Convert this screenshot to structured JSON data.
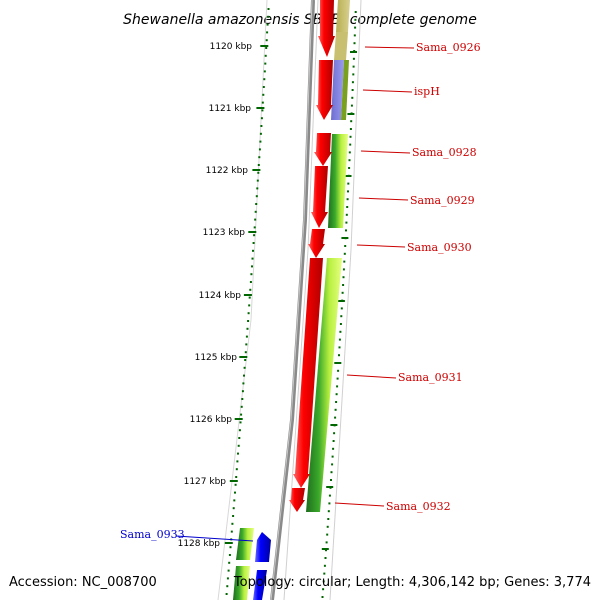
{
  "title": "Shewanella amazonensis SB2B, complete genome",
  "footer": {
    "accession": "Accession: NC_008700",
    "topology": "Topology: circular; Length: 4,306,142 bp; Genes: 3,774"
  },
  "kbp_labels": [
    "1120 kbp",
    "1121 kbp",
    "1122 kbp",
    "1123 kbp",
    "1124 kbp",
    "1125 kbp",
    "1126 kbp",
    "1127 kbp",
    "1128 kbp"
  ],
  "gene_labels": [
    {
      "text": "Sama_0926",
      "color": "#cc0000"
    },
    {
      "text": "ispH",
      "color": "#cc0000"
    },
    {
      "text": "Sama_0928",
      "color": "#cc0000"
    },
    {
      "text": "Sama_0929",
      "color": "#cc0000"
    },
    {
      "text": "Sama_0930",
      "color": "#cc0000"
    },
    {
      "text": "Sama_0931",
      "color": "#cc0000"
    },
    {
      "text": "Sama_0932",
      "color": "#cc0000"
    },
    {
      "text": "Sama_0933",
      "color": "#0000cc"
    }
  ],
  "colors": {
    "forward_gene": "#e00000",
    "reverse_gene": "#0000e0",
    "backbone": "#808080",
    "gc_track": "#33aa00",
    "tick": "#006600"
  }
}
